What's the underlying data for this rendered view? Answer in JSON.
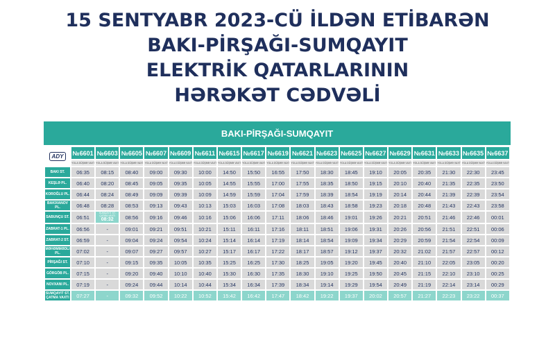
{
  "title": {
    "line1": "15 SENTYABR 2023-CÜ İLDƏN ETİBARƏN",
    "line2": "BAKI-PİRŞAĞI-SUMQAYIT",
    "line3": "ELEKTRİK QATARLARININ",
    "line4": "HƏRƏKƏT CƏDVƏLİ"
  },
  "banner": "BAKI-PİRŞAĞI-SUMQAYIT",
  "logo": "ADY",
  "sub_label": "YOLA DÜŞMƏ VAXTI",
  "trains": [
    "№6601",
    "№6603",
    "№6605",
    "№6607",
    "№6609",
    "№6611",
    "№6615",
    "№6617",
    "№6619",
    "№6621",
    "№6623",
    "№6625",
    "№6627",
    "№6629",
    "№6631",
    "№6633",
    "№6635",
    "№6637"
  ],
  "stations": [
    "BAKI ST.",
    "KEŞLƏ PL.",
    "KOROĞLU PL.",
    "BAKIXANOV PL.",
    "SABUNÇU ST.",
    "ZABRAT-1 PL.",
    "ZABRAT-2 ST.",
    "MƏHƏMMƏDLI PL.",
    "PİRŞAĞI ST.",
    "GÖRGÖB PL.",
    "NOVXANI PL.",
    "SUMQAYIT ST. ÇATMA VAXTI"
  ],
  "special_note": "SUMQAYIT ST. ÇATMA VAXTI",
  "special_time": "08:32",
  "rows": [
    [
      "06:35",
      "08:15",
      "08:40",
      "09:00",
      "09:30",
      "10:00",
      "14:50",
      "15:50",
      "16:55",
      "17:50",
      "18:30",
      "18:45",
      "19:10",
      "20:05",
      "20:35",
      "21:30",
      "22:30",
      "23:45"
    ],
    [
      "06:40",
      "08:20",
      "08:45",
      "09:05",
      "09:35",
      "10:05",
      "14:55",
      "15:55",
      "17:00",
      "17:55",
      "18:35",
      "18:50",
      "19:15",
      "20:10",
      "20:40",
      "21:35",
      "22:35",
      "23:50"
    ],
    [
      "06:44",
      "08:24",
      "08:49",
      "09:09",
      "09:39",
      "10:09",
      "14:59",
      "15:59",
      "17:04",
      "17:59",
      "18:39",
      "18:54",
      "19:19",
      "20:14",
      "20:44",
      "21:39",
      "22:39",
      "23:54"
    ],
    [
      "06:48",
      "08:28",
      "08:53",
      "09:13",
      "09:43",
      "10:13",
      "15:03",
      "16:03",
      "17:08",
      "18:03",
      "18:43",
      "18:58",
      "19:23",
      "20:18",
      "20:48",
      "21:43",
      "22:43",
      "23:58"
    ],
    [
      "06:51",
      "",
      "08:56",
      "09:16",
      "09:46",
      "10:16",
      "15:06",
      "16:06",
      "17:11",
      "18:06",
      "18:46",
      "19:01",
      "19:26",
      "20:21",
      "20:51",
      "21:46",
      "22:46",
      "00:01"
    ],
    [
      "06:56",
      "-",
      "09:01",
      "09:21",
      "09:51",
      "10:21",
      "15:11",
      "16:11",
      "17:16",
      "18:11",
      "18:51",
      "19:06",
      "19:31",
      "20:26",
      "20:56",
      "21:51",
      "22:51",
      "00:06"
    ],
    [
      "06:59",
      "-",
      "09:04",
      "09:24",
      "09:54",
      "10:24",
      "15:14",
      "16:14",
      "17:19",
      "18:14",
      "18:54",
      "19:09",
      "19:34",
      "20:29",
      "20:59",
      "21:54",
      "22:54",
      "00:09"
    ],
    [
      "07:02",
      "-",
      "09:07",
      "09:27",
      "09:57",
      "10:27",
      "15:17",
      "16:17",
      "17:22",
      "18:17",
      "18:57",
      "19:12",
      "19:37",
      "20:32",
      "21:02",
      "21:57",
      "22:57",
      "00:12"
    ],
    [
      "07:10",
      "-",
      "09:15",
      "09:35",
      "10:05",
      "10:35",
      "15:25",
      "16:25",
      "17:30",
      "18:25",
      "19:05",
      "19:20",
      "19:45",
      "20:40",
      "21:10",
      "22:05",
      "23:05",
      "00:20"
    ],
    [
      "07:15",
      "-",
      "09:20",
      "09:40",
      "10:10",
      "10:40",
      "15:30",
      "16:30",
      "17:35",
      "18:30",
      "19:10",
      "19:25",
      "19:50",
      "20:45",
      "21:15",
      "22:10",
      "23:10",
      "00:25"
    ],
    [
      "07:19",
      "-",
      "09:24",
      "09:44",
      "10:14",
      "10:44",
      "15:34",
      "16:34",
      "17:39",
      "18:34",
      "19:14",
      "19:29",
      "19:54",
      "20:49",
      "21:19",
      "22:14",
      "23:14",
      "00:29"
    ],
    [
      "07:27",
      "-",
      "09:32",
      "09:52",
      "10:22",
      "10:52",
      "15:42",
      "16:42",
      "17:47",
      "18:42",
      "19:22",
      "19:37",
      "20:02",
      "20:57",
      "21:27",
      "22:23",
      "23:22",
      "00:37"
    ]
  ]
}
